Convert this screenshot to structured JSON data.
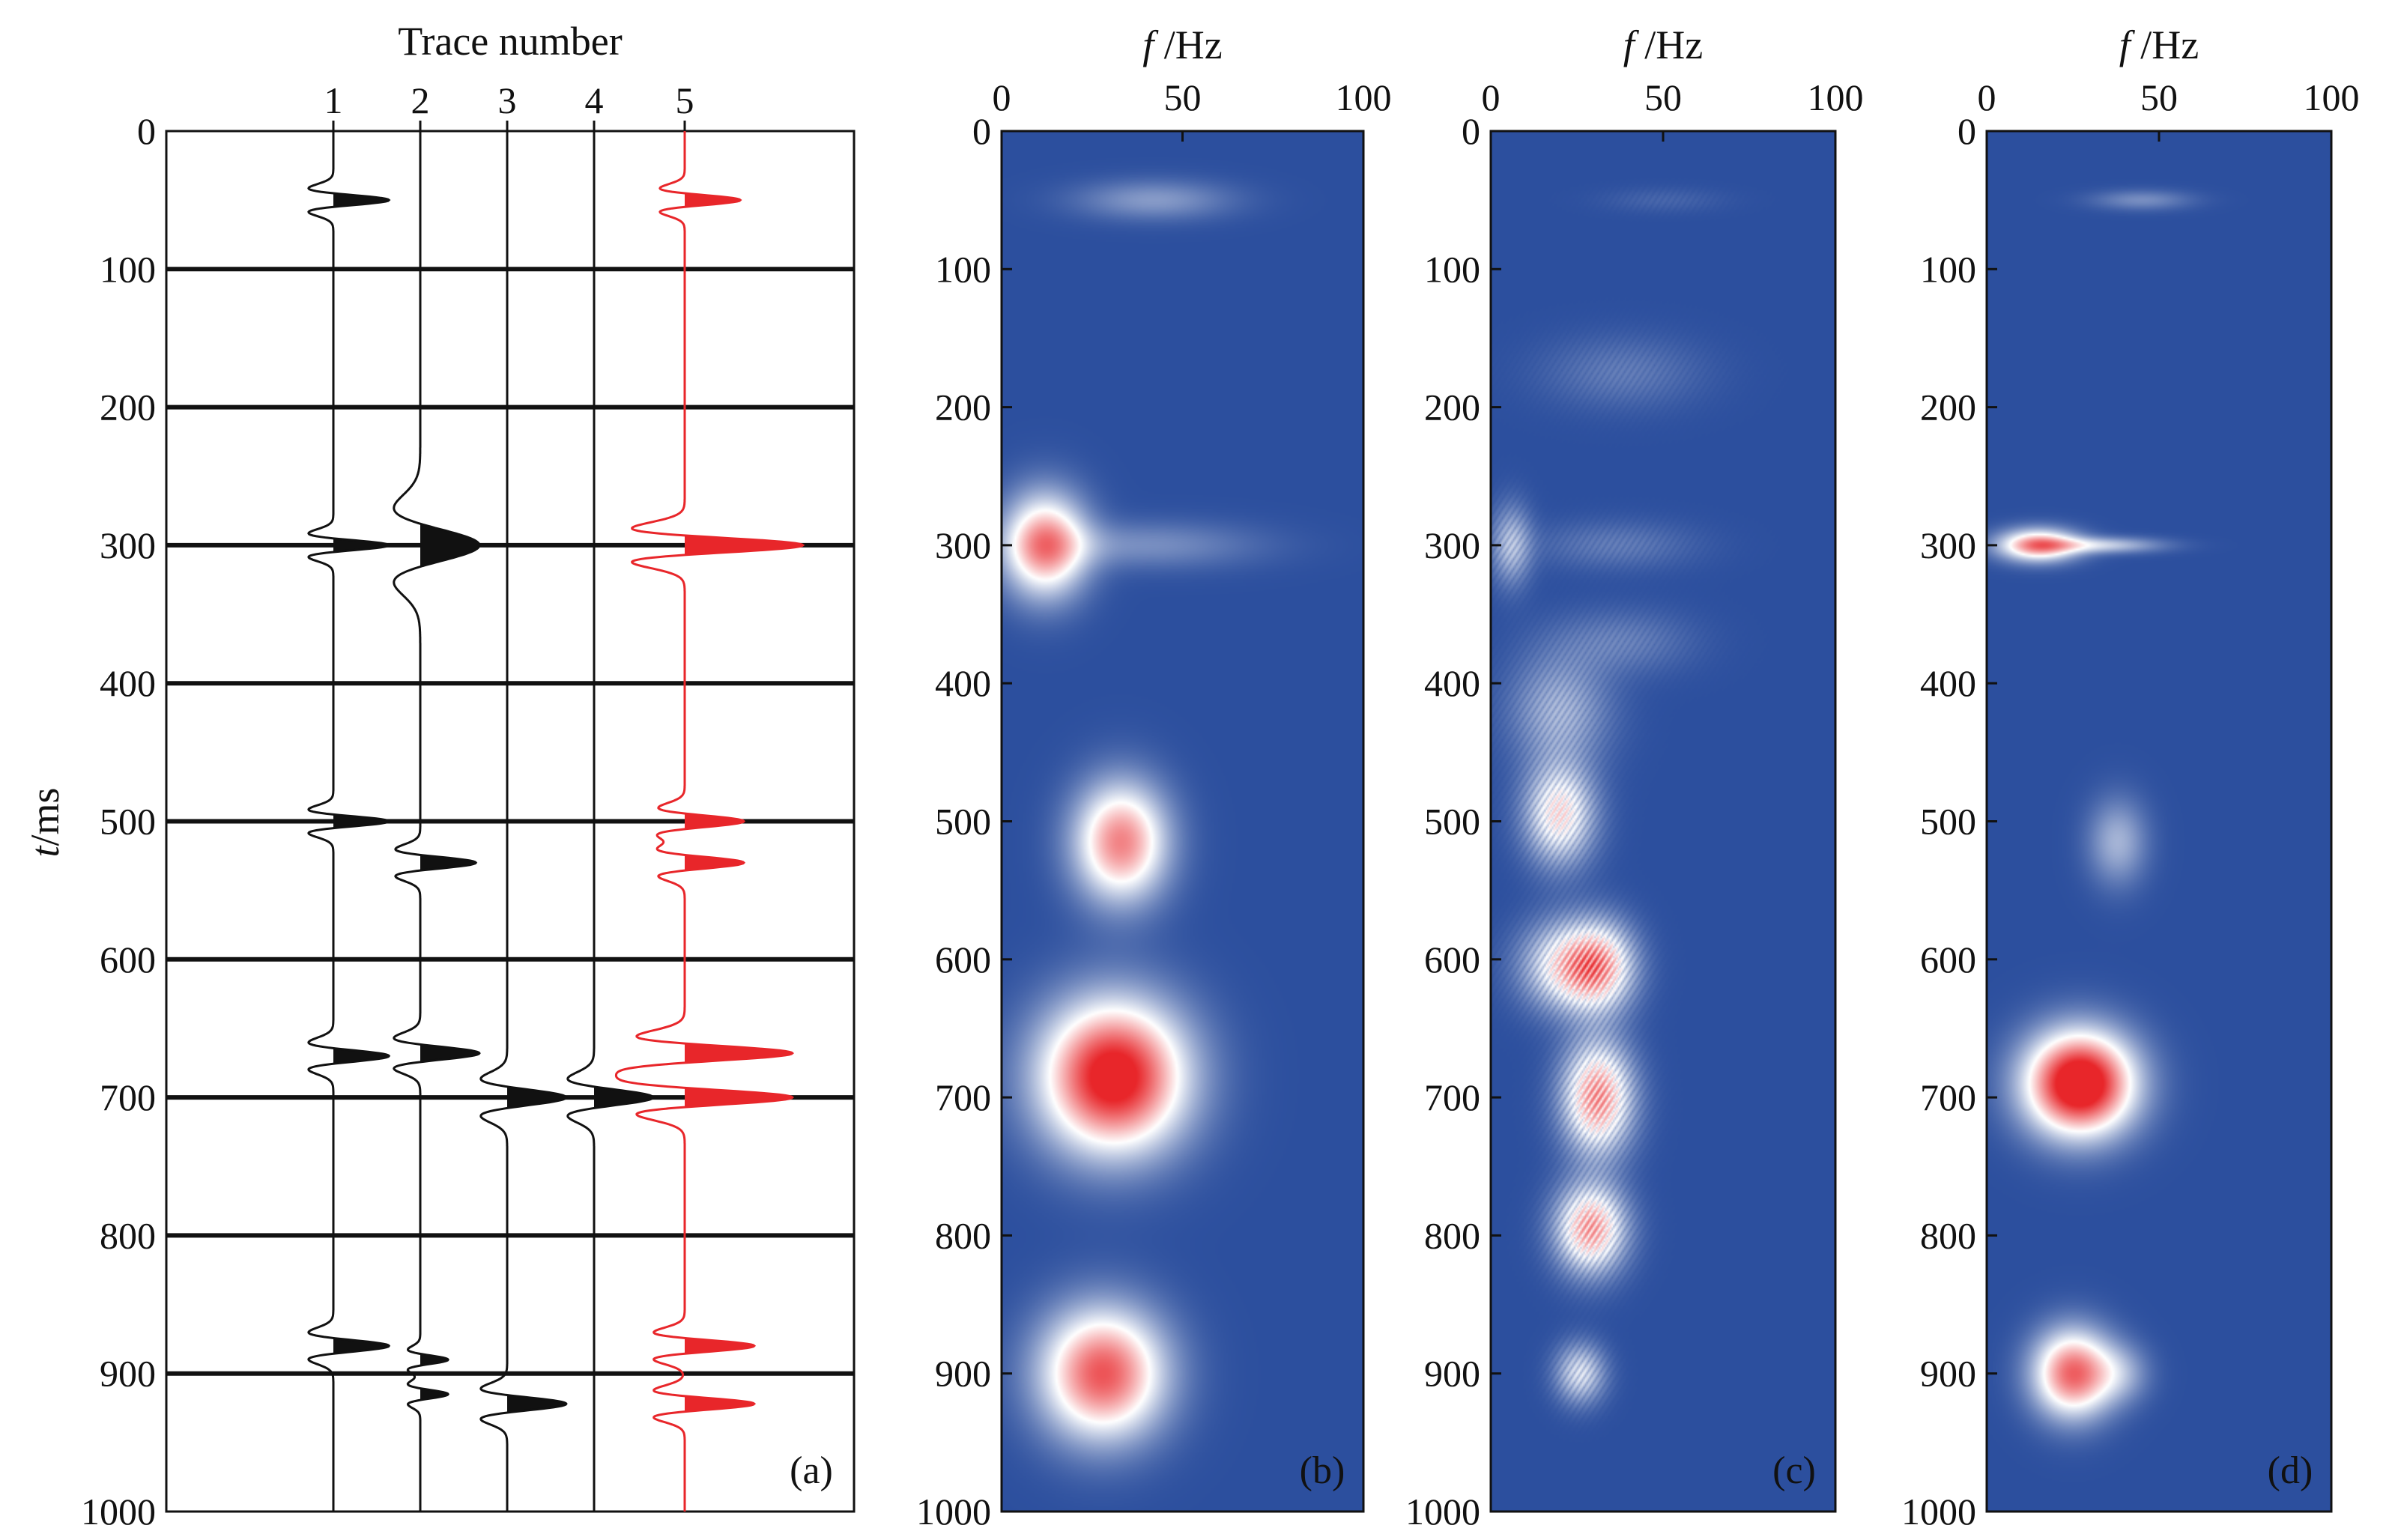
{
  "figure": {
    "panel_labels": [
      "(a)",
      "(b)",
      "(c)",
      "(d)"
    ],
    "y_axis_label_italic": "t",
    "y_axis_label_rest": "/ms",
    "x_axis_label_traces": "Trace number",
    "freq_axis_label_italic": "f",
    "freq_axis_label_rest": "/Hz"
  },
  "chart_data": [
    {
      "type": "line",
      "panel": "(a)",
      "title": "",
      "xlabel": "Trace number",
      "ylabel": "t/ms",
      "x_ticks": [
        "1",
        "2",
        "3",
        "4",
        "5"
      ],
      "y_ticks": [
        "0",
        "100",
        "200",
        "300",
        "400",
        "500",
        "600",
        "700",
        "800",
        "900",
        "1000"
      ],
      "ylim": [
        0,
        1000
      ],
      "y_inverted": true,
      "grid": "horizontal lines at 100, 200, 300, 400, 500, 600, 700, 800, 900 ms",
      "colors": {
        "traces_1_to_4": "#111111",
        "trace_5": "#e8262a"
      },
      "series": [
        {
          "name": "1",
          "wavelets": [
            {
              "t": 50,
              "amp": 0.8,
              "width": 7
            },
            {
              "t": 300,
              "amp": 0.8,
              "width": 7
            },
            {
              "t": 500,
              "amp": 0.8,
              "width": 7
            },
            {
              "t": 670,
              "amp": 0.8,
              "width": 8
            },
            {
              "t": 880,
              "amp": 0.8,
              "width": 8
            }
          ]
        },
        {
          "name": "2",
          "wavelets": [
            {
              "t": 300,
              "amp": 0.85,
              "width": 22
            },
            {
              "t": 530,
              "amp": 0.8,
              "width": 8
            },
            {
              "t": 668,
              "amp": 0.85,
              "width": 9
            },
            {
              "t": 890,
              "amp": 0.4,
              "width": 6
            },
            {
              "t": 915,
              "amp": 0.4,
              "width": 6
            }
          ]
        },
        {
          "name": "3",
          "wavelets": [
            {
              "t": 700,
              "amp": 0.85,
              "width": 11
            },
            {
              "t": 922,
              "amp": 0.85,
              "width": 9
            }
          ]
        },
        {
          "name": "4",
          "wavelets": [
            {
              "t": 700,
              "amp": 0.85,
              "width": 11
            }
          ]
        },
        {
          "name": "5",
          "wavelets": [
            {
              "t": 50,
              "amp": 0.8,
              "width": 7
            },
            {
              "t": 300,
              "amp": 1.7,
              "width": 10
            },
            {
              "t": 500,
              "amp": 0.85,
              "width": 8
            },
            {
              "t": 530,
              "amp": 0.85,
              "width": 8
            },
            {
              "t": 668,
              "amp": 1.55,
              "width": 10
            },
            {
              "t": 700,
              "amp": 1.55,
              "width": 10
            },
            {
              "t": 880,
              "amp": 1.0,
              "width": 8
            },
            {
              "t": 922,
              "amp": 1.0,
              "width": 8
            }
          ]
        }
      ]
    },
    {
      "type": "heatmap",
      "panel": "(b)",
      "title": "",
      "xlabel": "f/Hz",
      "ylabel": "",
      "x_ticks": [
        "0",
        "50",
        "100"
      ],
      "y_ticks": [
        "0",
        "100",
        "200",
        "300",
        "400",
        "500",
        "600",
        "700",
        "800",
        "900",
        "1000"
      ],
      "xlim": [
        0,
        100
      ],
      "ylim": [
        0,
        1000
      ],
      "y_inverted": true,
      "colormap": {
        "background": "#2c4f9e",
        "mid": "#ffffff",
        "peak": "#e8262a"
      },
      "blobs": [
        {
          "f": 42,
          "t": 50,
          "sf": 15,
          "st": 10,
          "amp": 0.3
        },
        {
          "f": 40,
          "t": 300,
          "sf": 22,
          "st": 12,
          "amp": 0.25
        },
        {
          "f": 12,
          "t": 300,
          "sf": 8,
          "st": 26,
          "amp": 1.1
        },
        {
          "f": 33,
          "t": 515,
          "sf": 9,
          "st": 30,
          "amp": 1.1
        },
        {
          "f": 31,
          "t": 685,
          "sf": 14,
          "st": 38,
          "amp": 1.55
        },
        {
          "f": 28,
          "t": 900,
          "sf": 12,
          "st": 33,
          "amp": 1.25
        }
      ]
    },
    {
      "type": "heatmap",
      "panel": "(c)",
      "title": "",
      "xlabel": "f/Hz",
      "ylabel": "",
      "x_ticks": [
        "0",
        "50",
        "100"
      ],
      "y_ticks": [
        "0",
        "100",
        "200",
        "300",
        "400",
        "500",
        "600",
        "700",
        "800",
        "900",
        "1000"
      ],
      "xlim": [
        0,
        100
      ],
      "ylim": [
        0,
        1000
      ],
      "y_inverted": true,
      "colormap": {
        "background": "#2c4f9e",
        "mid": "#ffffff",
        "peak": "#e8262a"
      },
      "blobs": [
        {
          "f": 50,
          "t": 50,
          "sf": 12,
          "st": 6,
          "amp": 0.1
        },
        {
          "f": 38,
          "t": 175,
          "sf": 16,
          "st": 18,
          "amp": 0.2
        },
        {
          "f": 6,
          "t": 300,
          "sf": 4,
          "st": 20,
          "amp": 0.5
        },
        {
          "f": 36,
          "t": 300,
          "sf": 16,
          "st": 12,
          "amp": 0.2
        },
        {
          "f": 38,
          "t": 370,
          "sf": 14,
          "st": 16,
          "amp": 0.22
        },
        {
          "f": 20,
          "t": 420,
          "sf": 10,
          "st": 28,
          "amp": 0.45
        },
        {
          "f": 20,
          "t": 495,
          "sf": 7,
          "st": 25,
          "amp": 0.9
        },
        {
          "f": 22,
          "t": 605,
          "sf": 9,
          "st": 22,
          "amp": 0.85
        },
        {
          "f": 32,
          "t": 605,
          "sf": 7,
          "st": 22,
          "amp": 0.85
        },
        {
          "f": 31,
          "t": 700,
          "sf": 7,
          "st": 28,
          "amp": 1.2
        },
        {
          "f": 29,
          "t": 795,
          "sf": 7,
          "st": 22,
          "amp": 1.15
        },
        {
          "f": 26,
          "t": 900,
          "sf": 5,
          "st": 15,
          "amp": 0.65
        }
      ],
      "striated": true
    },
    {
      "type": "heatmap",
      "panel": "(d)",
      "title": "",
      "xlabel": "f/Hz",
      "ylabel": "",
      "x_ticks": [
        "0",
        "50",
        "100"
      ],
      "y_ticks": [
        "0",
        "100",
        "200",
        "300",
        "400",
        "500",
        "600",
        "700",
        "800",
        "900",
        "1000"
      ],
      "xlim": [
        0,
        100
      ],
      "ylim": [
        0,
        1000
      ],
      "y_inverted": true,
      "colormap": {
        "background": "#2c4f9e",
        "mid": "#ffffff",
        "peak": "#e8262a"
      },
      "blobs": [
        {
          "f": 45,
          "t": 50,
          "sf": 10,
          "st": 5,
          "amp": 0.25
        },
        {
          "f": 15,
          "t": 300,
          "sf": 8,
          "st": 8,
          "amp": 1.1
        },
        {
          "f": 33,
          "t": 300,
          "sf": 12,
          "st": 4,
          "amp": 0.5
        },
        {
          "f": 38,
          "t": 515,
          "sf": 6,
          "st": 22,
          "amp": 0.4
        },
        {
          "f": 27,
          "t": 690,
          "sf": 11,
          "st": 26,
          "amp": 1.7
        },
        {
          "f": 25,
          "t": 900,
          "sf": 8,
          "st": 22,
          "amp": 1.2
        },
        {
          "f": 39,
          "t": 900,
          "sf": 6,
          "st": 15,
          "amp": 0.3
        }
      ]
    }
  ]
}
